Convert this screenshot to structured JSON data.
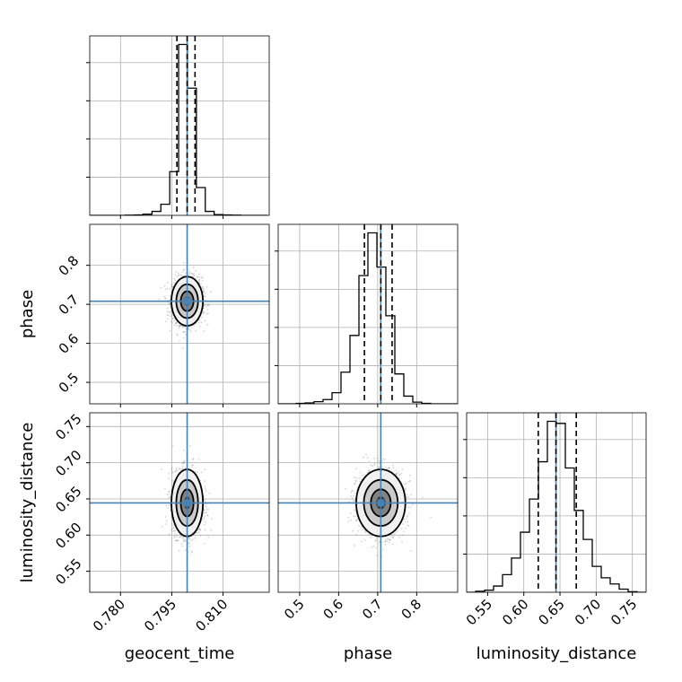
{
  "chart_data": {
    "type": "corner",
    "parameters": [
      "geocent_time",
      "phase",
      "luminosity_distance"
    ],
    "colors": {
      "truth": "#4682b4",
      "hist": "#000000",
      "points": "#888888",
      "grid": "#b0b0b0"
    },
    "grid": true,
    "ranges": {
      "geocent_time": [
        0.771,
        0.8235
      ],
      "phase": [
        0.445,
        0.905
      ],
      "luminosity_distance": [
        0.521,
        0.769
      ]
    },
    "ticks": {
      "geocent_time": {
        "values": [
          0.78,
          0.795,
          0.81
        ],
        "labels": [
          "0.780",
          "0.795",
          "0.810"
        ]
      },
      "phase": {
        "values": [
          0.5,
          0.6,
          0.7,
          0.8
        ],
        "labels": [
          "0.5",
          "0.6",
          "0.7",
          "0.8"
        ]
      },
      "luminosity_distance": {
        "values": [
          0.55,
          0.6,
          0.65,
          0.7,
          0.75
        ],
        "labels": [
          "0.55",
          "0.60",
          "0.65",
          "0.70",
          "0.75"
        ]
      }
    },
    "ticks_y_phase": {
      "values": [
        0.5,
        0.6,
        0.7,
        0.8
      ],
      "labels": [
        "0.5",
        "0.6",
        "0.7",
        "0.8"
      ]
    },
    "ticks_y_luminosity_distance": {
      "values": [
        0.55,
        0.6,
        0.65,
        0.7,
        0.75
      ],
      "labels": [
        "0.55",
        "0.60",
        "0.65",
        "0.70",
        "0.75"
      ]
    },
    "truths": {
      "geocent_time": 0.7995,
      "phase": 0.708,
      "luminosity_distance": 0.6445
    },
    "quantiles": {
      "geocent_time": [
        0.7965,
        0.7995,
        0.8018
      ],
      "phase": [
        0.666,
        0.708,
        0.737
      ],
      "luminosity_distance": [
        0.62,
        0.6445,
        0.6725
      ]
    },
    "histograms": {
      "geocent_time": {
        "edges": [
          0.771,
          0.7736,
          0.7762,
          0.7788,
          0.7814,
          0.784,
          0.7866,
          0.7892,
          0.7918,
          0.7944,
          0.797,
          0.7996,
          0.8022,
          0.8048,
          0.8074,
          0.81,
          0.8126,
          0.8152,
          0.8178,
          0.8204,
          0.823
        ],
        "counts": [
          0,
          0,
          0,
          0,
          0.2,
          0.5,
          1.5,
          5,
          14,
          55,
          215,
          160,
          35,
          5,
          1,
          0.5,
          0.2,
          0,
          0,
          0
        ]
      },
      "phase": {
        "edges": [
          0.445,
          0.468,
          0.491,
          0.514,
          0.537,
          0.56,
          0.583,
          0.606,
          0.629,
          0.652,
          0.675,
          0.698,
          0.721,
          0.744,
          0.767,
          0.79,
          0.813,
          0.836,
          0.859,
          0.882,
          0.905
        ],
        "counts": [
          0,
          0,
          0.5,
          1,
          2.5,
          5,
          13,
          37,
          80,
          150,
          200,
          160,
          103,
          35,
          9,
          2,
          0.5,
          0,
          0,
          0
        ]
      },
      "luminosity_distance": {
        "edges": [
          0.521,
          0.5334,
          0.5458,
          0.5582,
          0.5706,
          0.583,
          0.5954,
          0.6078,
          0.6202,
          0.6326,
          0.645,
          0.6574,
          0.6698,
          0.6822,
          0.6946,
          0.707,
          0.7194,
          0.7318,
          0.7442,
          0.7566,
          0.769
        ],
        "counts": [
          0,
          1,
          2,
          6,
          17,
          33,
          58,
          90,
          126,
          165,
          163,
          120,
          79,
          51,
          25,
          14,
          8,
          3,
          0.5,
          0
        ]
      }
    },
    "scatter_spread": {
      "geocent_time": 0.0022,
      "phase": 0.03,
      "luminosity_distance": 0.022
    },
    "scatter_points_per_panel": 1600
  }
}
